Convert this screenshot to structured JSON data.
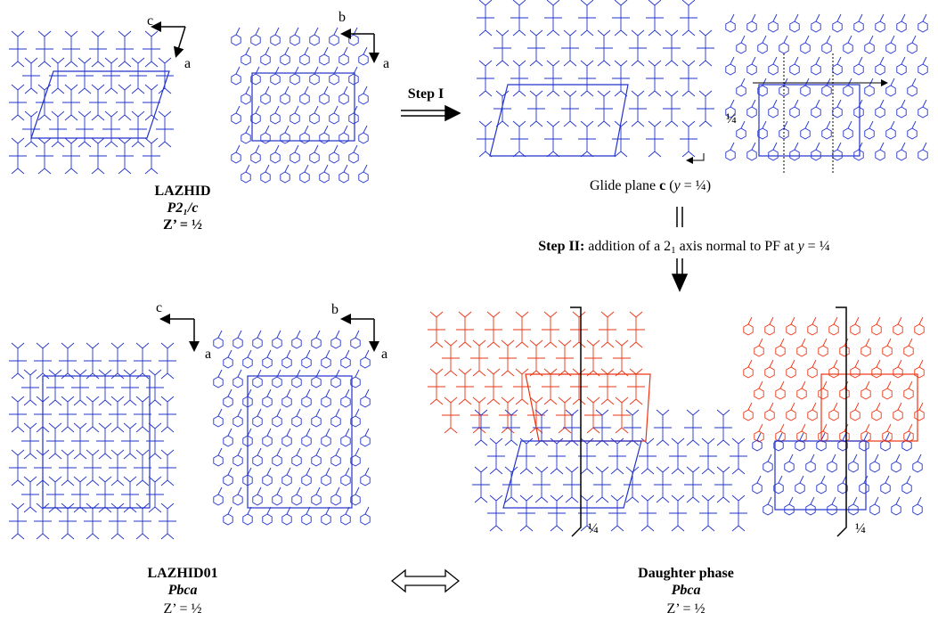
{
  "top_left": {
    "axis_labels": [
      "c",
      "a",
      "b",
      "a"
    ],
    "caption": [
      "LAZHID",
      "P2₁/c",
      "Z’ = ½"
    ]
  },
  "step_1": "Step I",
  "glide_plane": [
    "Glide plane ",
    "c",
    " (",
    "y",
    " = ¼)"
  ],
  "top_right": {
    "quarter_label": "¼"
  },
  "step_2": [
    "Step II:",
    " addition of a 2",
    "1",
    " axis normal to PF at ",
    "y",
    " = ¼"
  ],
  "bottom_left": {
    "axis_labels": [
      "c",
      "a",
      "b",
      "a"
    ],
    "caption": [
      "LAZHID01",
      "Pbca",
      "Z’ = ½"
    ]
  },
  "bottom_right": {
    "quarter_labels": [
      "¼",
      "¼"
    ],
    "caption": [
      "Daughter phase",
      "Pbca",
      "Z’ = ½"
    ]
  }
}
